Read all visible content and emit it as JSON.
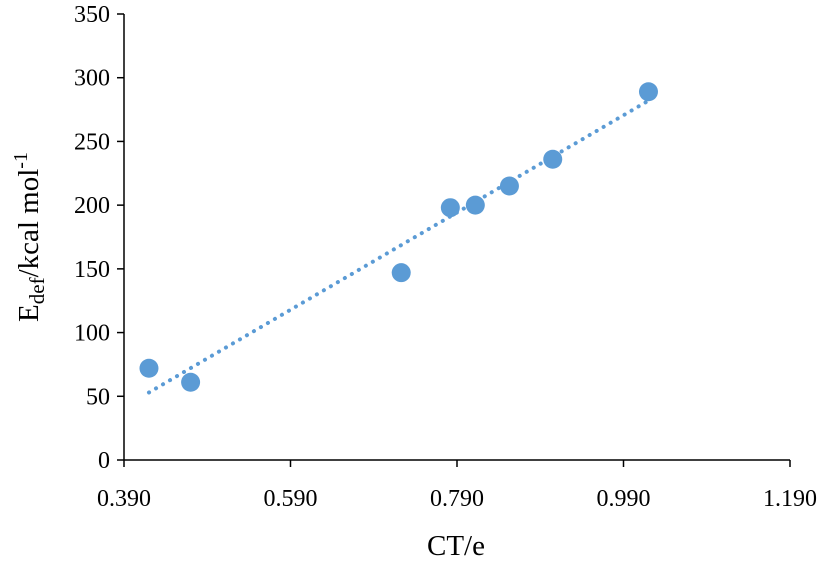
{
  "chart_data": {
    "type": "scatter",
    "title": "",
    "xlabel": "CT/e",
    "ylabel": {
      "main": "E",
      "subscript": "def",
      "rest": "/kcal mol",
      "superscript": "-1"
    },
    "xlim": [
      0.39,
      1.19
    ],
    "ylim": [
      0,
      350
    ],
    "xticks": [
      "0.390",
      "0.590",
      "0.790",
      "0.990",
      "1.190"
    ],
    "yticks": [
      "0",
      "50",
      "100",
      "150",
      "200",
      "250",
      "300",
      "350"
    ],
    "grid": false,
    "legend": "none",
    "series": [
      {
        "points": [
          {
            "x": 0.42,
            "y": 72
          },
          {
            "x": 0.47,
            "y": 61
          },
          {
            "x": 0.723,
            "y": 147
          },
          {
            "x": 0.782,
            "y": 198
          },
          {
            "x": 0.812,
            "y": 200
          },
          {
            "x": 0.853,
            "y": 215
          },
          {
            "x": 0.905,
            "y": 236
          },
          {
            "x": 1.02,
            "y": 289
          }
        ],
        "color": "#5B9BD5",
        "trendline": {
          "type": "linear",
          "style": "dotted",
          "from": {
            "x": 0.42,
            "y": 53
          },
          "to": {
            "x": 1.02,
            "y": 282
          }
        }
      }
    ]
  }
}
